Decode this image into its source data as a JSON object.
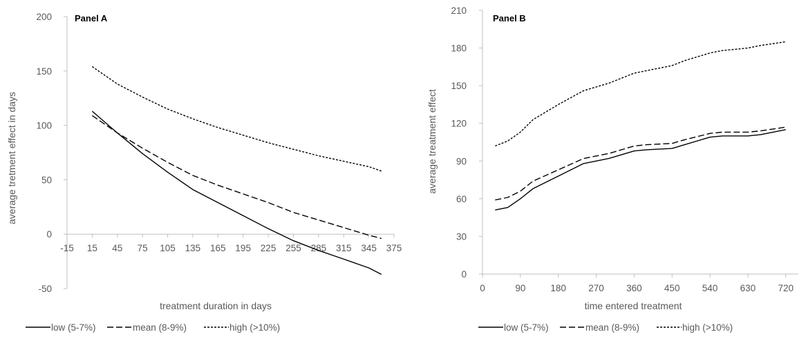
{
  "chart_data": [
    {
      "type": "line",
      "title": "Panel A",
      "xlabel": "treatment duration in days",
      "ylabel": "average tretment effect in days",
      "xlim": [
        -15,
        375
      ],
      "ylim": [
        -50,
        200
      ],
      "xticks": [
        -15,
        15,
        45,
        75,
        105,
        135,
        165,
        195,
        225,
        255,
        285,
        315,
        345,
        375
      ],
      "yticks": [
        -50,
        0,
        50,
        100,
        150,
        200
      ],
      "x_axis_crosses_at": 0,
      "grid": false,
      "legend_position": "bottom",
      "series": [
        {
          "name": "low (5-7%)",
          "style": "solid",
          "x": [
            15,
            45,
            75,
            105,
            135,
            165,
            195,
            225,
            255,
            285,
            315,
            345,
            360
          ],
          "y": [
            113,
            93,
            74,
            57,
            41,
            29,
            17,
            5,
            -6,
            -15,
            -23,
            -31,
            -37
          ]
        },
        {
          "name": "mean (8-9%)",
          "style": "dashed",
          "x": [
            15,
            45,
            75,
            105,
            135,
            165,
            195,
            225,
            255,
            285,
            315,
            345,
            360
          ],
          "y": [
            109,
            93,
            79,
            66,
            54,
            45,
            37,
            29,
            20,
            13,
            6,
            -1,
            -4
          ]
        },
        {
          "name": "high (>10%)",
          "style": "dotted",
          "x": [
            15,
            45,
            75,
            105,
            135,
            165,
            195,
            225,
            255,
            285,
            315,
            345,
            360
          ],
          "y": [
            154,
            138,
            126,
            115,
            106,
            98,
            91,
            84,
            78,
            72,
            67,
            62,
            58
          ]
        }
      ]
    },
    {
      "type": "line",
      "title": "Panel B",
      "xlabel": "time entered treatment",
      "ylabel": "average treatment effect",
      "xlim": [
        0,
        750
      ],
      "ylim": [
        0,
        210
      ],
      "xticks": [
        0,
        90,
        180,
        270,
        360,
        450,
        540,
        630,
        720
      ],
      "yticks": [
        0,
        30,
        60,
        90,
        120,
        150,
        180,
        210
      ],
      "grid": false,
      "legend_position": "bottom",
      "series": [
        {
          "name": "low (5-7%)",
          "style": "solid",
          "x": [
            30,
            60,
            90,
            120,
            180,
            240,
            300,
            360,
            390,
            450,
            480,
            540,
            570,
            630,
            660,
            720
          ],
          "y": [
            51,
            53,
            60,
            68,
            78,
            88,
            92,
            98,
            99,
            100,
            103,
            109,
            110,
            110,
            111,
            115
          ]
        },
        {
          "name": "mean (8-9%)",
          "style": "dashed",
          "x": [
            30,
            60,
            90,
            120,
            180,
            240,
            300,
            360,
            390,
            450,
            480,
            540,
            570,
            630,
            660,
            720
          ],
          "y": [
            59,
            61,
            66,
            74,
            83,
            92,
            96,
            102,
            103,
            104,
            107,
            112,
            113,
            113,
            114,
            117
          ]
        },
        {
          "name": "high (>10%)",
          "style": "dotted",
          "x": [
            30,
            60,
            90,
            120,
            180,
            240,
            300,
            360,
            390,
            450,
            480,
            540,
            570,
            630,
            660,
            720
          ],
          "y": [
            102,
            106,
            113,
            123,
            135,
            146,
            152,
            160,
            162,
            166,
            170,
            176,
            178,
            180,
            182,
            185
          ]
        }
      ]
    }
  ]
}
